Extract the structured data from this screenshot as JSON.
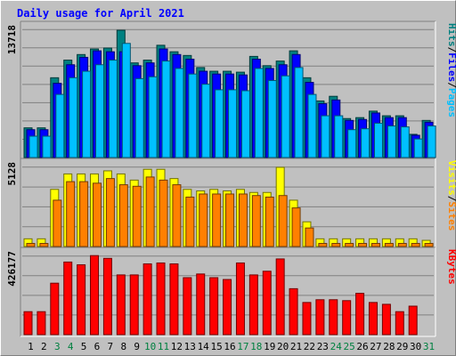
{
  "chart_data": {
    "type": "bar",
    "title": "Daily usage for April 2021",
    "categories": [
      "1",
      "2",
      "3",
      "4",
      "5",
      "6",
      "7",
      "8",
      "9",
      "10",
      "11",
      "12",
      "13",
      "14",
      "15",
      "16",
      "17",
      "18",
      "19",
      "20",
      "21",
      "22",
      "23",
      "24",
      "25",
      "26",
      "27",
      "28",
      "29",
      "30",
      "31"
    ],
    "weekend_days": [
      "3",
      "4",
      "10",
      "11",
      "17",
      "18",
      "24",
      "25",
      "31"
    ],
    "panels": [
      {
        "id": "hits-files-pages",
        "ymax_label": "13718",
        "ymax": 13718,
        "legend": [
          {
            "name": "Pages",
            "color": "#00c0ff"
          },
          {
            "name": "/",
            "color": "#000000"
          },
          {
            "name": "Files",
            "color": "#0000ff"
          },
          {
            "name": "/",
            "color": "#000000"
          },
          {
            "name": "Hits",
            "color": "#008080"
          }
        ],
        "series": [
          {
            "name": "Hits",
            "color": "#008080",
            "values": [
              3200,
              3200,
              8600,
              10500,
              11100,
              11700,
              11800,
              13718,
              10200,
              10500,
              12100,
              11400,
              11000,
              9700,
              9300,
              9300,
              9200,
              10900,
              9900,
              10400,
              11500,
              8600,
              6100,
              6600,
              4200,
              4300,
              5000,
              4500,
              4500,
              2500,
              4000
            ]
          },
          {
            "name": "Files",
            "color": "#0000ff",
            "values": [
              3000,
              3000,
              8000,
              10000,
              10800,
              11500,
              11400,
              11400,
              9900,
              10200,
              11700,
              11100,
              10600,
              9300,
              9000,
              9000,
              8900,
              10600,
              9600,
              10000,
              11100,
              8100,
              5800,
              6200,
              4000,
              4100,
              4800,
              4300,
              4300,
              2400,
              3800
            ]
          },
          {
            "name": "Pages",
            "color": "#00c0ff",
            "values": [
              2300,
              2300,
              6800,
              8600,
              9300,
              10000,
              10500,
              12300,
              8500,
              8700,
              10400,
              9600,
              9000,
              7900,
              7300,
              7300,
              7200,
              9600,
              8300,
              8800,
              9700,
              6800,
              4500,
              4500,
              3000,
              3100,
              3700,
              3400,
              3300,
              2000,
              3400
            ]
          }
        ]
      },
      {
        "id": "visits-sites",
        "ymax_label": "5128",
        "ymax": 5128,
        "legend": [
          {
            "name": "Sites",
            "color": "#ff8000"
          },
          {
            "name": "/",
            "color": "#000000"
          },
          {
            "name": "Visits",
            "color": "#ffff00"
          }
        ],
        "series": [
          {
            "name": "Visits",
            "color": "#ffff00",
            "values": [
              500,
              500,
              3700,
              4700,
              4700,
              4700,
              4900,
              4700,
              4300,
              5000,
              5000,
              4400,
              3700,
              3600,
              3700,
              3600,
              3700,
              3500,
              3500,
              5128,
              3000,
              1600,
              500,
              500,
              500,
              500,
              500,
              500,
              500,
              500,
              400
            ]
          },
          {
            "name": "Sites",
            "color": "#ff8000",
            "values": [
              200,
              200,
              3000,
              4200,
              4200,
              4100,
              4400,
              4000,
              3900,
              4500,
              4300,
              4000,
              3200,
              3400,
              3400,
              3400,
              3400,
              3300,
              3200,
              3300,
              2500,
              1200,
              200,
              200,
              200,
              200,
              200,
              200,
              200,
              200,
              200
            ]
          }
        ]
      },
      {
        "id": "kbytes",
        "ymax_label": "426177",
        "ymax": 426177,
        "legend": [
          {
            "name": "KBytes",
            "color": "#ff0000"
          }
        ],
        "series": [
          {
            "name": "KBytes",
            "color": "#ff0000",
            "values": [
              125000,
              125000,
              280000,
              395000,
              380000,
              430000,
              415000,
              325000,
              325000,
              385000,
              390000,
              385000,
              310000,
              330000,
              310000,
              300000,
              390000,
              325000,
              345000,
              412000,
              250000,
              175000,
              190000,
              190000,
              185000,
              225000,
              175000,
              165000,
              125000,
              155000,
              0
            ]
          }
        ]
      }
    ]
  }
}
